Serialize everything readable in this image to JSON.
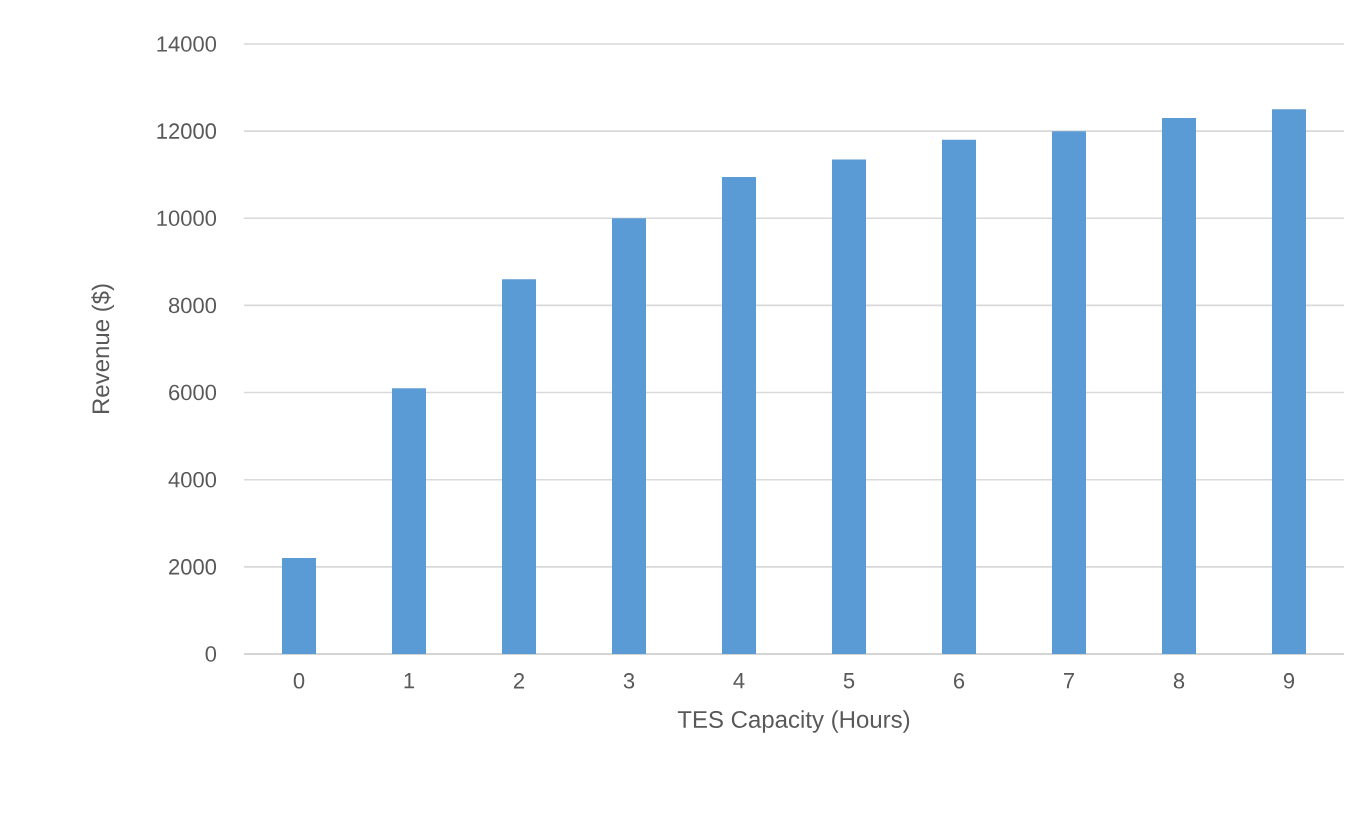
{
  "chart_data": {
    "type": "bar",
    "xlabel": "TES Capacity (Hours)",
    "ylabel": "Revenue ($)",
    "categories": [
      "0",
      "1",
      "2",
      "3",
      "4",
      "5",
      "6",
      "7",
      "8",
      "9"
    ],
    "values": [
      2200,
      6100,
      8600,
      10000,
      10950,
      11350,
      11800,
      12000,
      12300,
      12500
    ],
    "color": "#5b9bd5",
    "ylim": [
      0,
      14000
    ],
    "yticks": [
      0,
      2000,
      4000,
      6000,
      8000,
      10000,
      12000,
      14000
    ],
    "grid": "y"
  }
}
